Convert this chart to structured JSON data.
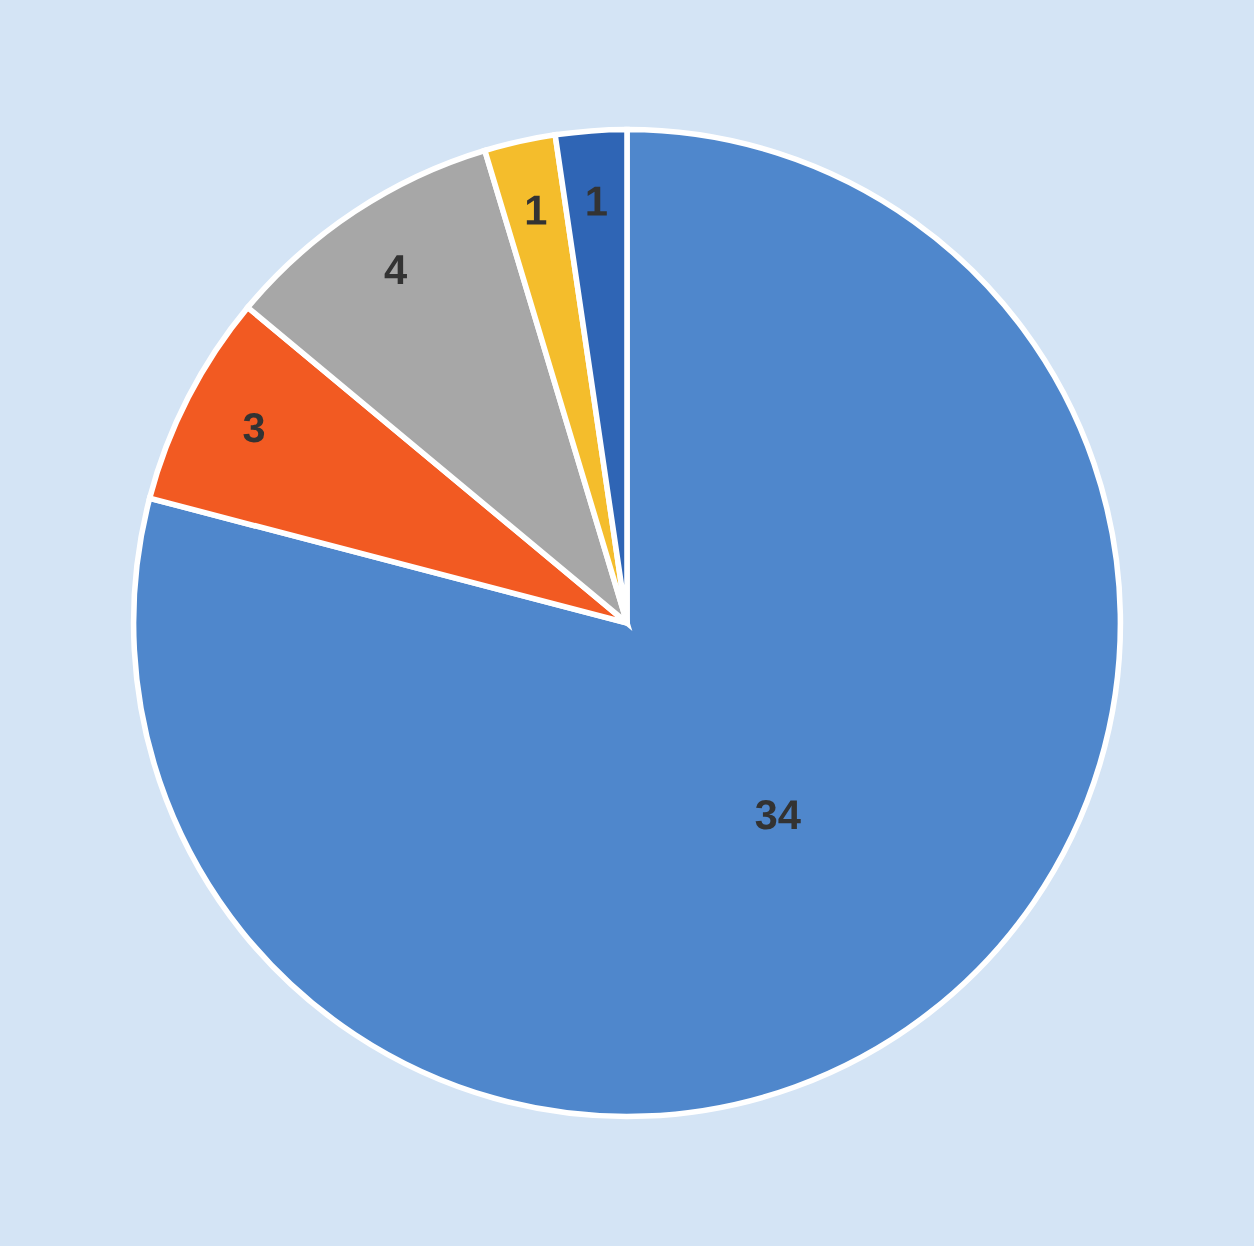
{
  "chart_data": {
    "type": "pie",
    "categories": [
      null,
      null,
      null,
      null,
      null
    ],
    "values": [
      34,
      3,
      4,
      1,
      1
    ],
    "colors": [
      "#4f87cc",
      "#f25a22",
      "#a7a7a7",
      "#f4bd2c",
      "#2f65b5"
    ],
    "data_labels": true
  }
}
